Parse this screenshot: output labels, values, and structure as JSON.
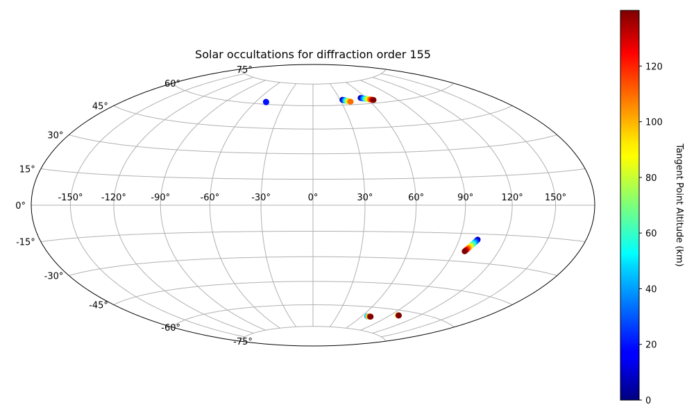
{
  "chart_data": {
    "type": "scatter",
    "projection": "hammer",
    "title": "Solar occultations for diffraction order 155",
    "xlabel": "",
    "ylabel": "",
    "x_ticks": [
      "-150°",
      "-120°",
      "-90°",
      "-60°",
      "-30°",
      "0°",
      "30°",
      "60°",
      "90°",
      "120°",
      "150°"
    ],
    "y_ticks": [
      "-75°",
      "-60°",
      "-45°",
      "-30°",
      "-15°",
      "0°",
      "15°",
      "30°",
      "45°",
      "60°",
      "75°"
    ],
    "grid": true,
    "colorbar": {
      "label": "Tangent Point Altitude (km)",
      "colormap": "jet",
      "range": [
        0,
        140
      ],
      "ticks": [
        "0",
        "20",
        "40",
        "60",
        "80",
        "100",
        "120"
      ]
    },
    "tracks": [
      {
        "lon_start": -49.5,
        "lat_start": 61.5,
        "lon_end": -49.0,
        "lat_end": 61.3,
        "alt_start": 5,
        "alt_end": 20
      },
      {
        "lon_start": 32.5,
        "lat_start": 63.5,
        "lon_end": 40.0,
        "lat_end": 62.0,
        "alt_start": 0,
        "alt_end": 110
      },
      {
        "lon_start": 54.0,
        "lat_start": 64.0,
        "lon_end": 65.5,
        "lat_end": 62.0,
        "alt_start": 0,
        "alt_end": 140
      },
      {
        "lon_start": 102.0,
        "lat_start": -18.0,
        "lon_end": 97.0,
        "lat_end": -24.5,
        "alt_start": 5,
        "alt_end": 140
      },
      {
        "lon_start": 66.5,
        "lat_start": -66.0,
        "lon_end": 71.0,
        "lat_end": -66.0,
        "alt_start": 30,
        "alt_end": 140
      },
      {
        "lon_start": 98.0,
        "lat_start": -63.0,
        "lon_end": 99.5,
        "lat_end": -63.0,
        "alt_start": 60,
        "alt_end": 140
      }
    ]
  }
}
